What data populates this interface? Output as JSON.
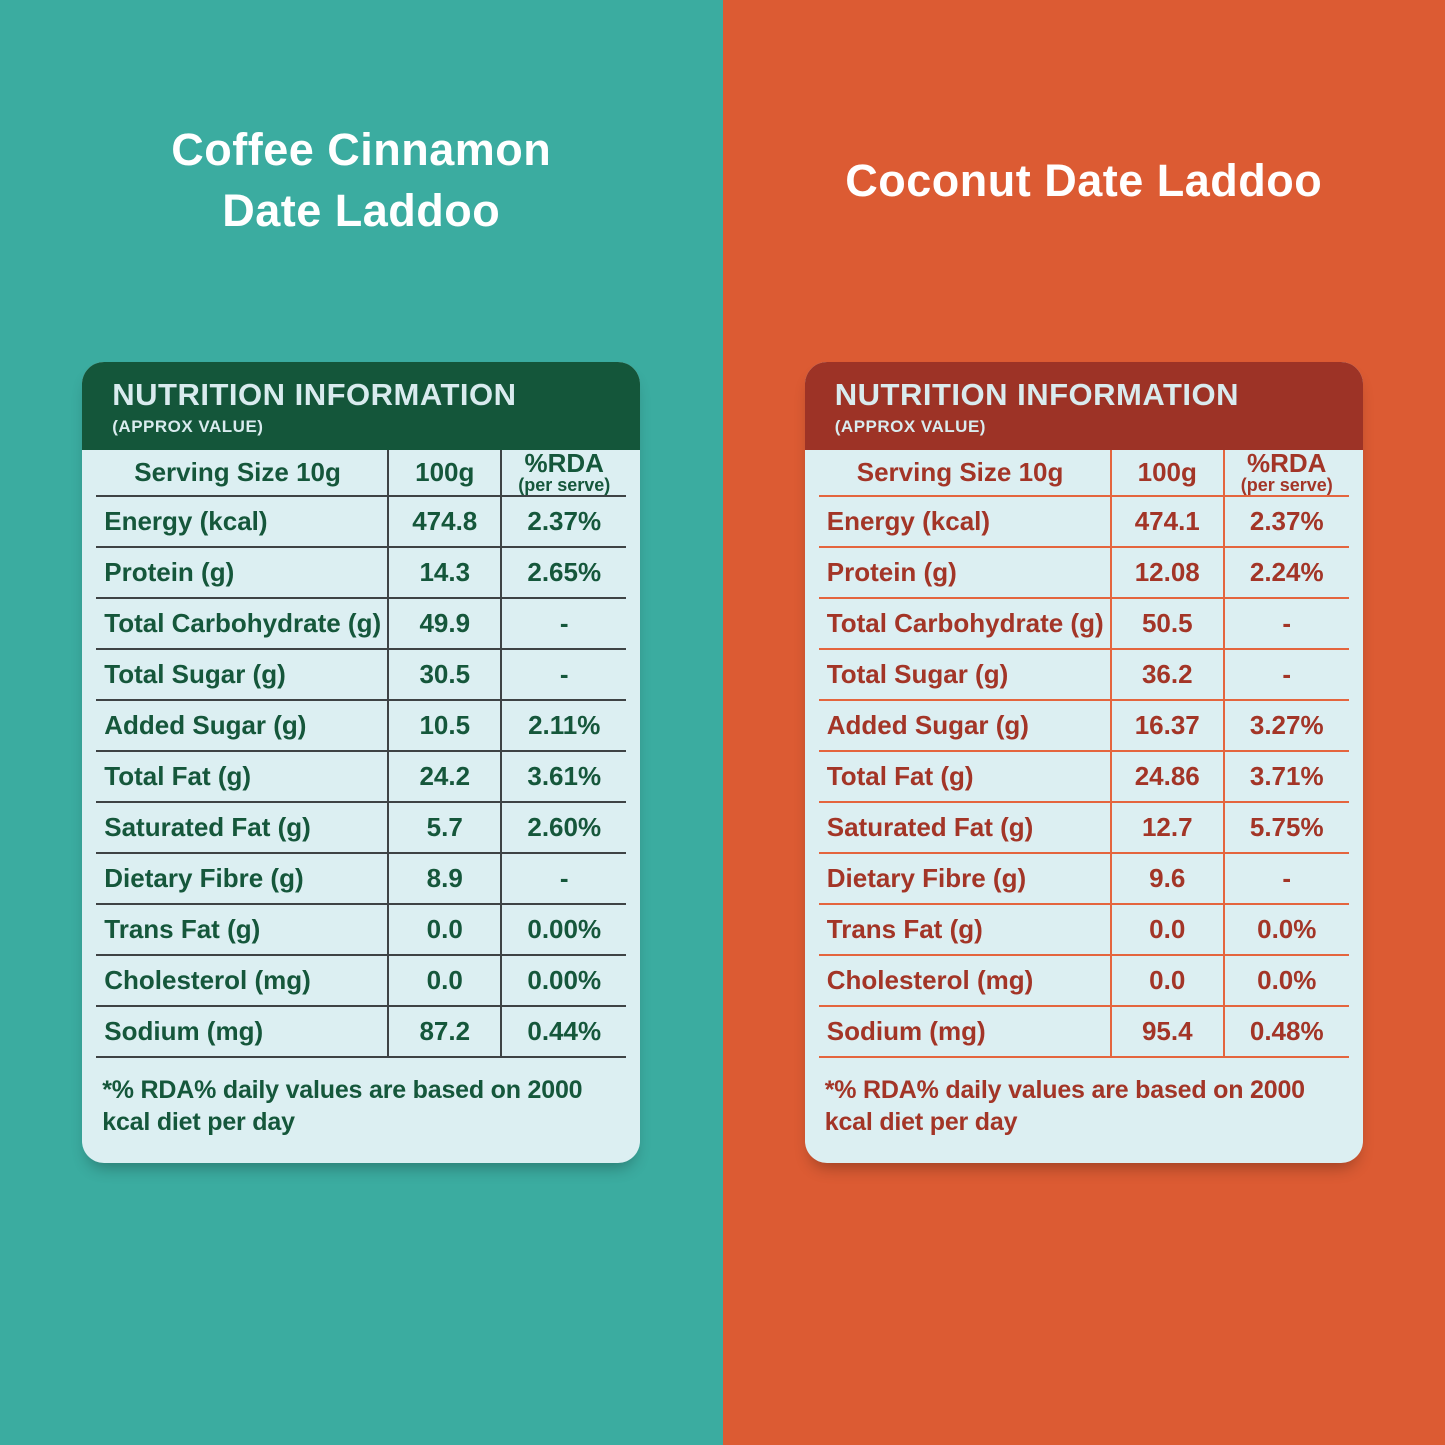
{
  "table_body_bg": "#DCEFF2",
  "panels": {
    "left": {
      "title": "Coffee Cinnamon\nDate Laddoo",
      "colors": {
        "background": "#3BACA0",
        "accent": "#14563A",
        "text": "#15573B",
        "line": "#3E4345",
        "header_text": "#D9EBEE"
      },
      "table": {
        "header_title": "NUTRITION INFORMATION",
        "header_sub": "(APPROX VALUE)",
        "col_label": "Serving Size 10g",
        "col_value": "100g",
        "col_rda": "%RDA",
        "col_rda_sub": "(per serve)",
        "rows": [
          {
            "label": "Energy (kcal)",
            "per100g": "474.8",
            "rda": "2.37%"
          },
          {
            "label": "Protein (g)",
            "per100g": "14.3",
            "rda": "2.65%"
          },
          {
            "label": "Total Carbohydrate (g)",
            "per100g": "49.9",
            "rda": "-"
          },
          {
            "label": "Total Sugar (g)",
            "per100g": "30.5",
            "rda": "-"
          },
          {
            "label": "Added Sugar (g)",
            "per100g": "10.5",
            "rda": "2.11%"
          },
          {
            "label": "Total Fat (g)",
            "per100g": "24.2",
            "rda": "3.61%"
          },
          {
            "label": "Saturated Fat (g)",
            "per100g": "5.7",
            "rda": "2.60%"
          },
          {
            "label": "Dietary Fibre (g)",
            "per100g": "8.9",
            "rda": "-"
          },
          {
            "label": "Trans Fat (g)",
            "per100g": "0.0",
            "rda": "0.00%"
          },
          {
            "label": "Cholesterol (mg)",
            "per100g": "0.0",
            "rda": "0.00%"
          },
          {
            "label": "Sodium (mg)",
            "per100g": "87.2",
            "rda": "0.44%"
          }
        ],
        "footnote": "*% RDA% daily values are based on 2000 kcal diet per day"
      }
    },
    "right": {
      "title": "Coconut Date Laddoo",
      "colors": {
        "background": "#DC5B33",
        "accent": "#9D3326",
        "text": "#A33527",
        "line": "#E4653E",
        "header_text": "#D9EBEE"
      },
      "table": {
        "header_title": "NUTRITION INFORMATION",
        "header_sub": "(APPROX VALUE)",
        "col_label": "Serving Size 10g",
        "col_value": "100g",
        "col_rda": "%RDA",
        "col_rda_sub": "(per serve)",
        "rows": [
          {
            "label": "Energy (kcal)",
            "per100g": "474.1",
            "rda": "2.37%"
          },
          {
            "label": "Protein (g)",
            "per100g": "12.08",
            "rda": "2.24%"
          },
          {
            "label": "Total Carbohydrate (g)",
            "per100g": "50.5",
            "rda": "-"
          },
          {
            "label": "Total Sugar (g)",
            "per100g": "36.2",
            "rda": "-"
          },
          {
            "label": "Added Sugar (g)",
            "per100g": "16.37",
            "rda": "3.27%"
          },
          {
            "label": "Total Fat (g)",
            "per100g": "24.86",
            "rda": "3.71%"
          },
          {
            "label": "Saturated Fat (g)",
            "per100g": "12.7",
            "rda": "5.75%"
          },
          {
            "label": "Dietary Fibre (g)",
            "per100g": "9.6",
            "rda": "-"
          },
          {
            "label": "Trans Fat (g)",
            "per100g": "0.0",
            "rda": "0.0%"
          },
          {
            "label": "Cholesterol (mg)",
            "per100g": "0.0",
            "rda": "0.0%"
          },
          {
            "label": "Sodium (mg)",
            "per100g": "95.4",
            "rda": "0.48%"
          }
        ],
        "footnote": "*% RDA% daily values are based on 2000 kcal diet per day"
      }
    }
  }
}
